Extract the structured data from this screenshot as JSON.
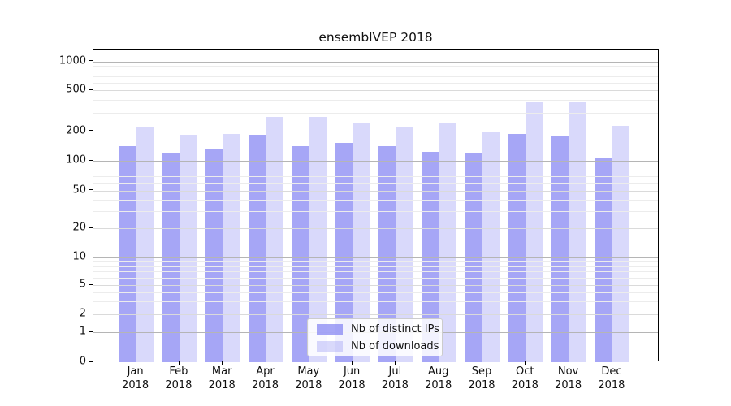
{
  "chart_data": {
    "type": "bar",
    "title": "ensemblVEP 2018",
    "categories": [
      "Jan",
      "Feb",
      "Mar",
      "Apr",
      "May",
      "Jun",
      "Jul",
      "Aug",
      "Sep",
      "Oct",
      "Nov",
      "Dec"
    ],
    "category_year": "2018",
    "series": [
      {
        "name": "Nb of distinct IPs",
        "color": "rgba(128,128,242,0.70)",
        "values": [
          141,
          122,
          130,
          184,
          141,
          151,
          142,
          124,
          122,
          187,
          179,
          106
        ]
      },
      {
        "name": "Nb of downloads",
        "color": "rgba(128,128,242,0.30)",
        "values": [
          219,
          184,
          187,
          276,
          277,
          236,
          223,
          240,
          196,
          380,
          388,
          226
        ]
      }
    ],
    "y_ticks": [
      0,
      1,
      2,
      5,
      10,
      20,
      50,
      100,
      200,
      500,
      1000
    ],
    "yscale": "symlog",
    "ylim": [
      0,
      1320
    ],
    "xlabel": "",
    "ylabel": "",
    "grid": true,
    "legend_position": "lower center",
    "colors": {
      "bar_base": "#8080f2",
      "grid_major": "#b5b5b5",
      "grid_minor": "#ececec",
      "spine": "#000000",
      "text": "#111111"
    }
  }
}
